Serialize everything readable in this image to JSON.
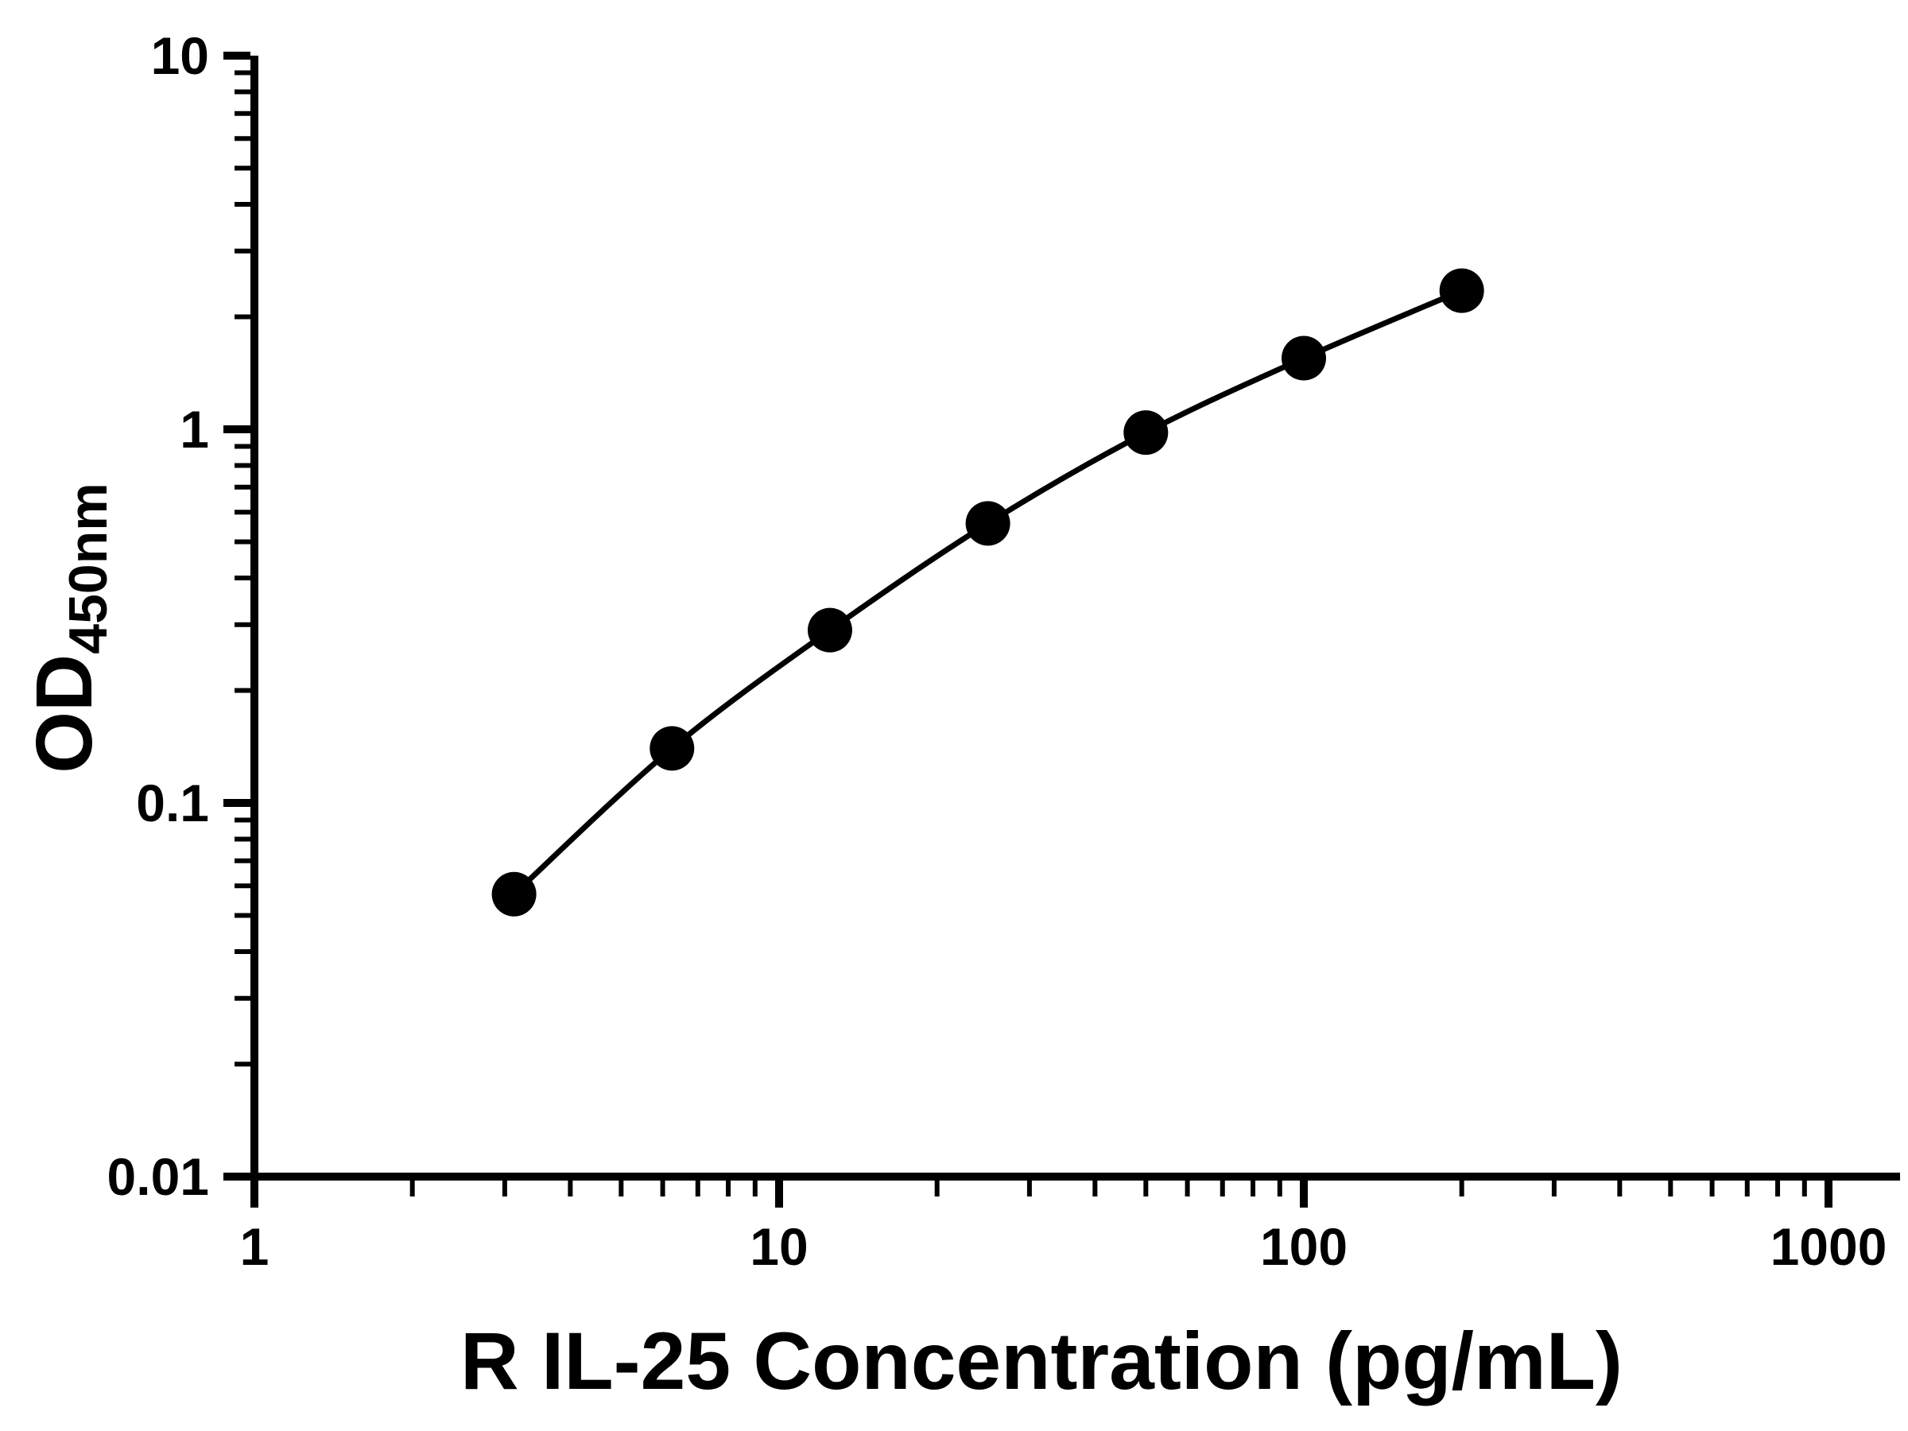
{
  "page": {
    "background": "#ffffff",
    "foreground": "#000000"
  },
  "chart_data": {
    "type": "scatter",
    "title": "",
    "xlabel": "R IL-25 Concentration (pg/mL)",
    "ylabel": "OD",
    "ylabel_subscript": "450nm",
    "x_scale": "log",
    "y_scale": "log",
    "xlim": [
      1,
      1000
    ],
    "ylim": [
      0.01,
      10
    ],
    "x_ticks": [
      1,
      10,
      100,
      1000
    ],
    "x_tick_labels": [
      "1",
      "10",
      "100",
      "1000"
    ],
    "y_ticks": [
      0.01,
      0.1,
      1,
      10
    ],
    "y_tick_labels": [
      "0.01",
      "0.1",
      "1",
      "10"
    ],
    "grid": false,
    "legend": false,
    "series": [
      {
        "marker": "circle",
        "color": "#000000",
        "line": "smooth",
        "points": [
          {
            "x": 3.125,
            "y": 0.057
          },
          {
            "x": 6.25,
            "y": 0.14
          },
          {
            "x": 12.5,
            "y": 0.29
          },
          {
            "x": 25,
            "y": 0.56
          },
          {
            "x": 50,
            "y": 0.98
          },
          {
            "x": 100,
            "y": 1.55
          },
          {
            "x": 200,
            "y": 2.35
          }
        ]
      }
    ]
  }
}
